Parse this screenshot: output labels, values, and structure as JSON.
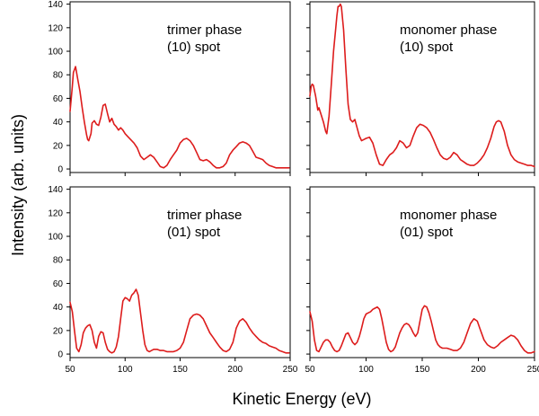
{
  "chart_data": {
    "type": "line",
    "xlabel": "Kinetic Energy (eV)",
    "ylabel": "Intensity (arb. units)",
    "line_color": "#dd1c1c",
    "xlim": [
      50,
      250
    ],
    "ylim": [
      -3,
      142
    ],
    "x_ticks": [
      50,
      100,
      150,
      200,
      250
    ],
    "y_ticks": [
      0,
      20,
      40,
      60,
      80,
      100,
      120,
      140
    ],
    "grid": false,
    "panels": [
      {
        "id": "trimer-10",
        "label_line1": "trimer phase",
        "label_line2": "(10) spot",
        "x": [
          50,
          52,
          53,
          55,
          57,
          59,
          61,
          63,
          65,
          66,
          67,
          69,
          70,
          72,
          74,
          76,
          78,
          80,
          82,
          84,
          86,
          88,
          90,
          92,
          94,
          96,
          98,
          100,
          102,
          105,
          108,
          111,
          114,
          117,
          120,
          123,
          126,
          129,
          132,
          135,
          138,
          141,
          144,
          147,
          150,
          153,
          156,
          159,
          162,
          165,
          168,
          171,
          174,
          177,
          180,
          183,
          186,
          189,
          192,
          195,
          198,
          201,
          204,
          207,
          210,
          213,
          216,
          219,
          222,
          225,
          228,
          231,
          234,
          237,
          240,
          243,
          246,
          249
        ],
        "y": [
          49,
          70,
          82,
          87,
          76,
          66,
          52,
          40,
          29,
          25,
          24,
          30,
          39,
          41,
          38,
          37,
          44,
          54,
          55,
          47,
          40,
          43,
          38,
          36,
          33,
          35,
          33,
          30,
          28,
          25,
          22,
          18,
          11,
          8,
          10,
          12,
          10,
          6,
          2,
          1,
          3,
          8,
          12,
          16,
          22,
          25,
          26,
          24,
          20,
          14,
          8,
          7,
          8,
          6,
          3,
          1,
          1,
          2,
          5,
          12,
          16,
          19,
          22,
          23,
          22,
          20,
          15,
          10,
          9,
          8,
          5,
          3,
          2,
          1,
          1,
          1,
          1,
          1
        ]
      },
      {
        "id": "monomer-10",
        "label_line1": "monomer phase",
        "label_line2": "(10) spot",
        "x": [
          50,
          51,
          52,
          53,
          55,
          57,
          58,
          60,
          62,
          64,
          65,
          67,
          69,
          71,
          73,
          74,
          75,
          76,
          77,
          78,
          80,
          82,
          84,
          86,
          88,
          90,
          92,
          94,
          96,
          98,
          100,
          103,
          106,
          109,
          112,
          115,
          118,
          121,
          124,
          127,
          130,
          133,
          136,
          139,
          142,
          145,
          148,
          151,
          154,
          157,
          160,
          163,
          166,
          169,
          172,
          175,
          178,
          181,
          184,
          187,
          190,
          193,
          196,
          199,
          202,
          205,
          208,
          211,
          214,
          216,
          218,
          220,
          223,
          226,
          229,
          232,
          235,
          238,
          241,
          244,
          247,
          250
        ],
        "y": [
          62,
          70,
          72,
          71,
          62,
          50,
          52,
          46,
          40,
          32,
          30,
          45,
          72,
          100,
          120,
          130,
          138,
          138,
          140,
          138,
          118,
          85,
          55,
          42,
          40,
          42,
          35,
          28,
          24,
          25,
          26,
          27,
          22,
          12,
          4,
          3,
          8,
          12,
          14,
          18,
          24,
          22,
          18,
          20,
          28,
          35,
          38,
          37,
          35,
          31,
          25,
          18,
          12,
          9,
          8,
          10,
          14,
          12,
          8,
          6,
          4,
          3,
          3,
          5,
          8,
          12,
          18,
          26,
          36,
          40,
          41,
          40,
          32,
          20,
          12,
          8,
          6,
          5,
          4,
          3,
          3,
          2
        ]
      },
      {
        "id": "trimer-01",
        "label_line1": "trimer phase",
        "label_line2": "(01) spot",
        "x": [
          50,
          52,
          54,
          56,
          58,
          60,
          62,
          64,
          66,
          68,
          70,
          72,
          74,
          76,
          78,
          80,
          82,
          84,
          86,
          88,
          90,
          92,
          94,
          96,
          98,
          100,
          102,
          104,
          106,
          108,
          110,
          112,
          114,
          116,
          118,
          120,
          122,
          124,
          126,
          129,
          132,
          135,
          138,
          141,
          144,
          147,
          150,
          153,
          156,
          159,
          162,
          165,
          168,
          171,
          174,
          177,
          180,
          183,
          186,
          189,
          192,
          195,
          198,
          201,
          204,
          207,
          210,
          213,
          216,
          219,
          222,
          225,
          228,
          231,
          234,
          237,
          240,
          243,
          246,
          249
        ],
        "y": [
          44,
          36,
          20,
          5,
          2,
          8,
          18,
          22,
          24,
          25,
          20,
          10,
          5,
          15,
          19,
          18,
          10,
          4,
          2,
          1,
          2,
          6,
          15,
          30,
          45,
          48,
          47,
          45,
          50,
          52,
          55,
          50,
          35,
          20,
          8,
          3,
          2,
          3,
          4,
          4,
          3,
          3,
          2,
          2,
          2,
          3,
          5,
          10,
          20,
          30,
          33,
          34,
          33,
          30,
          24,
          18,
          14,
          10,
          6,
          3,
          2,
          4,
          10,
          22,
          28,
          30,
          27,
          22,
          18,
          15,
          12,
          10,
          9,
          7,
          6,
          5,
          3,
          2,
          1,
          1
        ]
      },
      {
        "id": "monomer-01",
        "label_line1": "monomer phase",
        "label_line2": "(01) spot",
        "x": [
          50,
          52,
          54,
          56,
          58,
          60,
          62,
          64,
          66,
          68,
          70,
          72,
          74,
          76,
          78,
          80,
          82,
          84,
          86,
          88,
          90,
          92,
          94,
          96,
          98,
          100,
          102,
          104,
          106,
          108,
          110,
          112,
          114,
          116,
          118,
          120,
          122,
          124,
          126,
          128,
          130,
          132,
          134,
          136,
          138,
          140,
          142,
          144,
          146,
          148,
          150,
          152,
          154,
          156,
          158,
          160,
          162,
          164,
          166,
          168,
          170,
          172,
          175,
          178,
          181,
          184,
          187,
          190,
          193,
          196,
          199,
          202,
          205,
          208,
          211,
          214,
          217,
          220,
          223,
          226,
          229,
          232,
          235,
          238,
          241,
          244,
          247,
          250
        ],
        "y": [
          36,
          28,
          12,
          3,
          2,
          6,
          10,
          12,
          12,
          10,
          6,
          3,
          2,
          3,
          7,
          12,
          17,
          18,
          14,
          10,
          8,
          10,
          15,
          22,
          30,
          34,
          35,
          36,
          38,
          39,
          40,
          38,
          30,
          20,
          10,
          4,
          2,
          3,
          6,
          12,
          18,
          22,
          25,
          26,
          25,
          22,
          18,
          15,
          18,
          28,
          38,
          41,
          40,
          35,
          28,
          20,
          12,
          8,
          6,
          5,
          5,
          5,
          4,
          3,
          3,
          5,
          10,
          18,
          26,
          30,
          28,
          20,
          12,
          8,
          6,
          5,
          7,
          10,
          12,
          14,
          16,
          15,
          12,
          7,
          3,
          1,
          1,
          2
        ]
      }
    ]
  }
}
